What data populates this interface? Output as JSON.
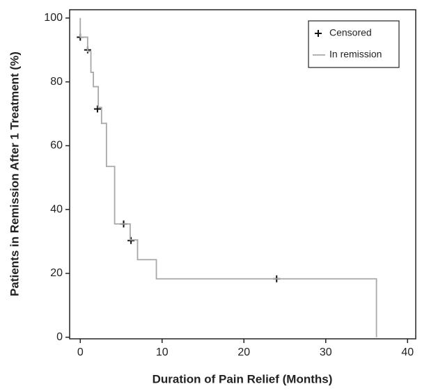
{
  "chart_data": {
    "type": "line",
    "xlabel": "Duration of Pain Relief (Months)",
    "ylabel": "Patients in Remission After 1 Treatment (%)",
    "xlim": [
      -1.3,
      41
    ],
    "ylim": [
      -0.5,
      102.6
    ],
    "xticks": [
      0,
      10,
      20,
      30,
      40
    ],
    "yticks": [
      0,
      20,
      40,
      60,
      80,
      100
    ],
    "legend": "upper right",
    "series": [
      {
        "name": "Censored",
        "color": "#111111",
        "style": "plus",
        "x": [
          0,
          0.9,
          2.1,
          5.3,
          6.2,
          24
        ],
        "values": [
          94,
          90,
          71.5,
          35.5,
          30.3,
          18.3
        ]
      },
      {
        "name": "In remission",
        "color": "#a8a8a8",
        "style": "line",
        "x": [
          0,
          0,
          0.9,
          0.9,
          1.3,
          1.3,
          1.6,
          1.6,
          2.2,
          2.2,
          2.6,
          2.6,
          3.2,
          3.2,
          4.2,
          4.2,
          6.1,
          6.1,
          7,
          7,
          9.3,
          9.3,
          36.2,
          36.2
        ],
        "values": [
          100,
          94,
          94,
          89.5,
          89.5,
          83,
          83,
          78.5,
          78.5,
          72,
          72,
          67,
          67,
          53.5,
          53.5,
          35.5,
          35.5,
          30.5,
          30.5,
          24.3,
          24.3,
          18.3,
          18.3,
          0
        ]
      }
    ]
  }
}
